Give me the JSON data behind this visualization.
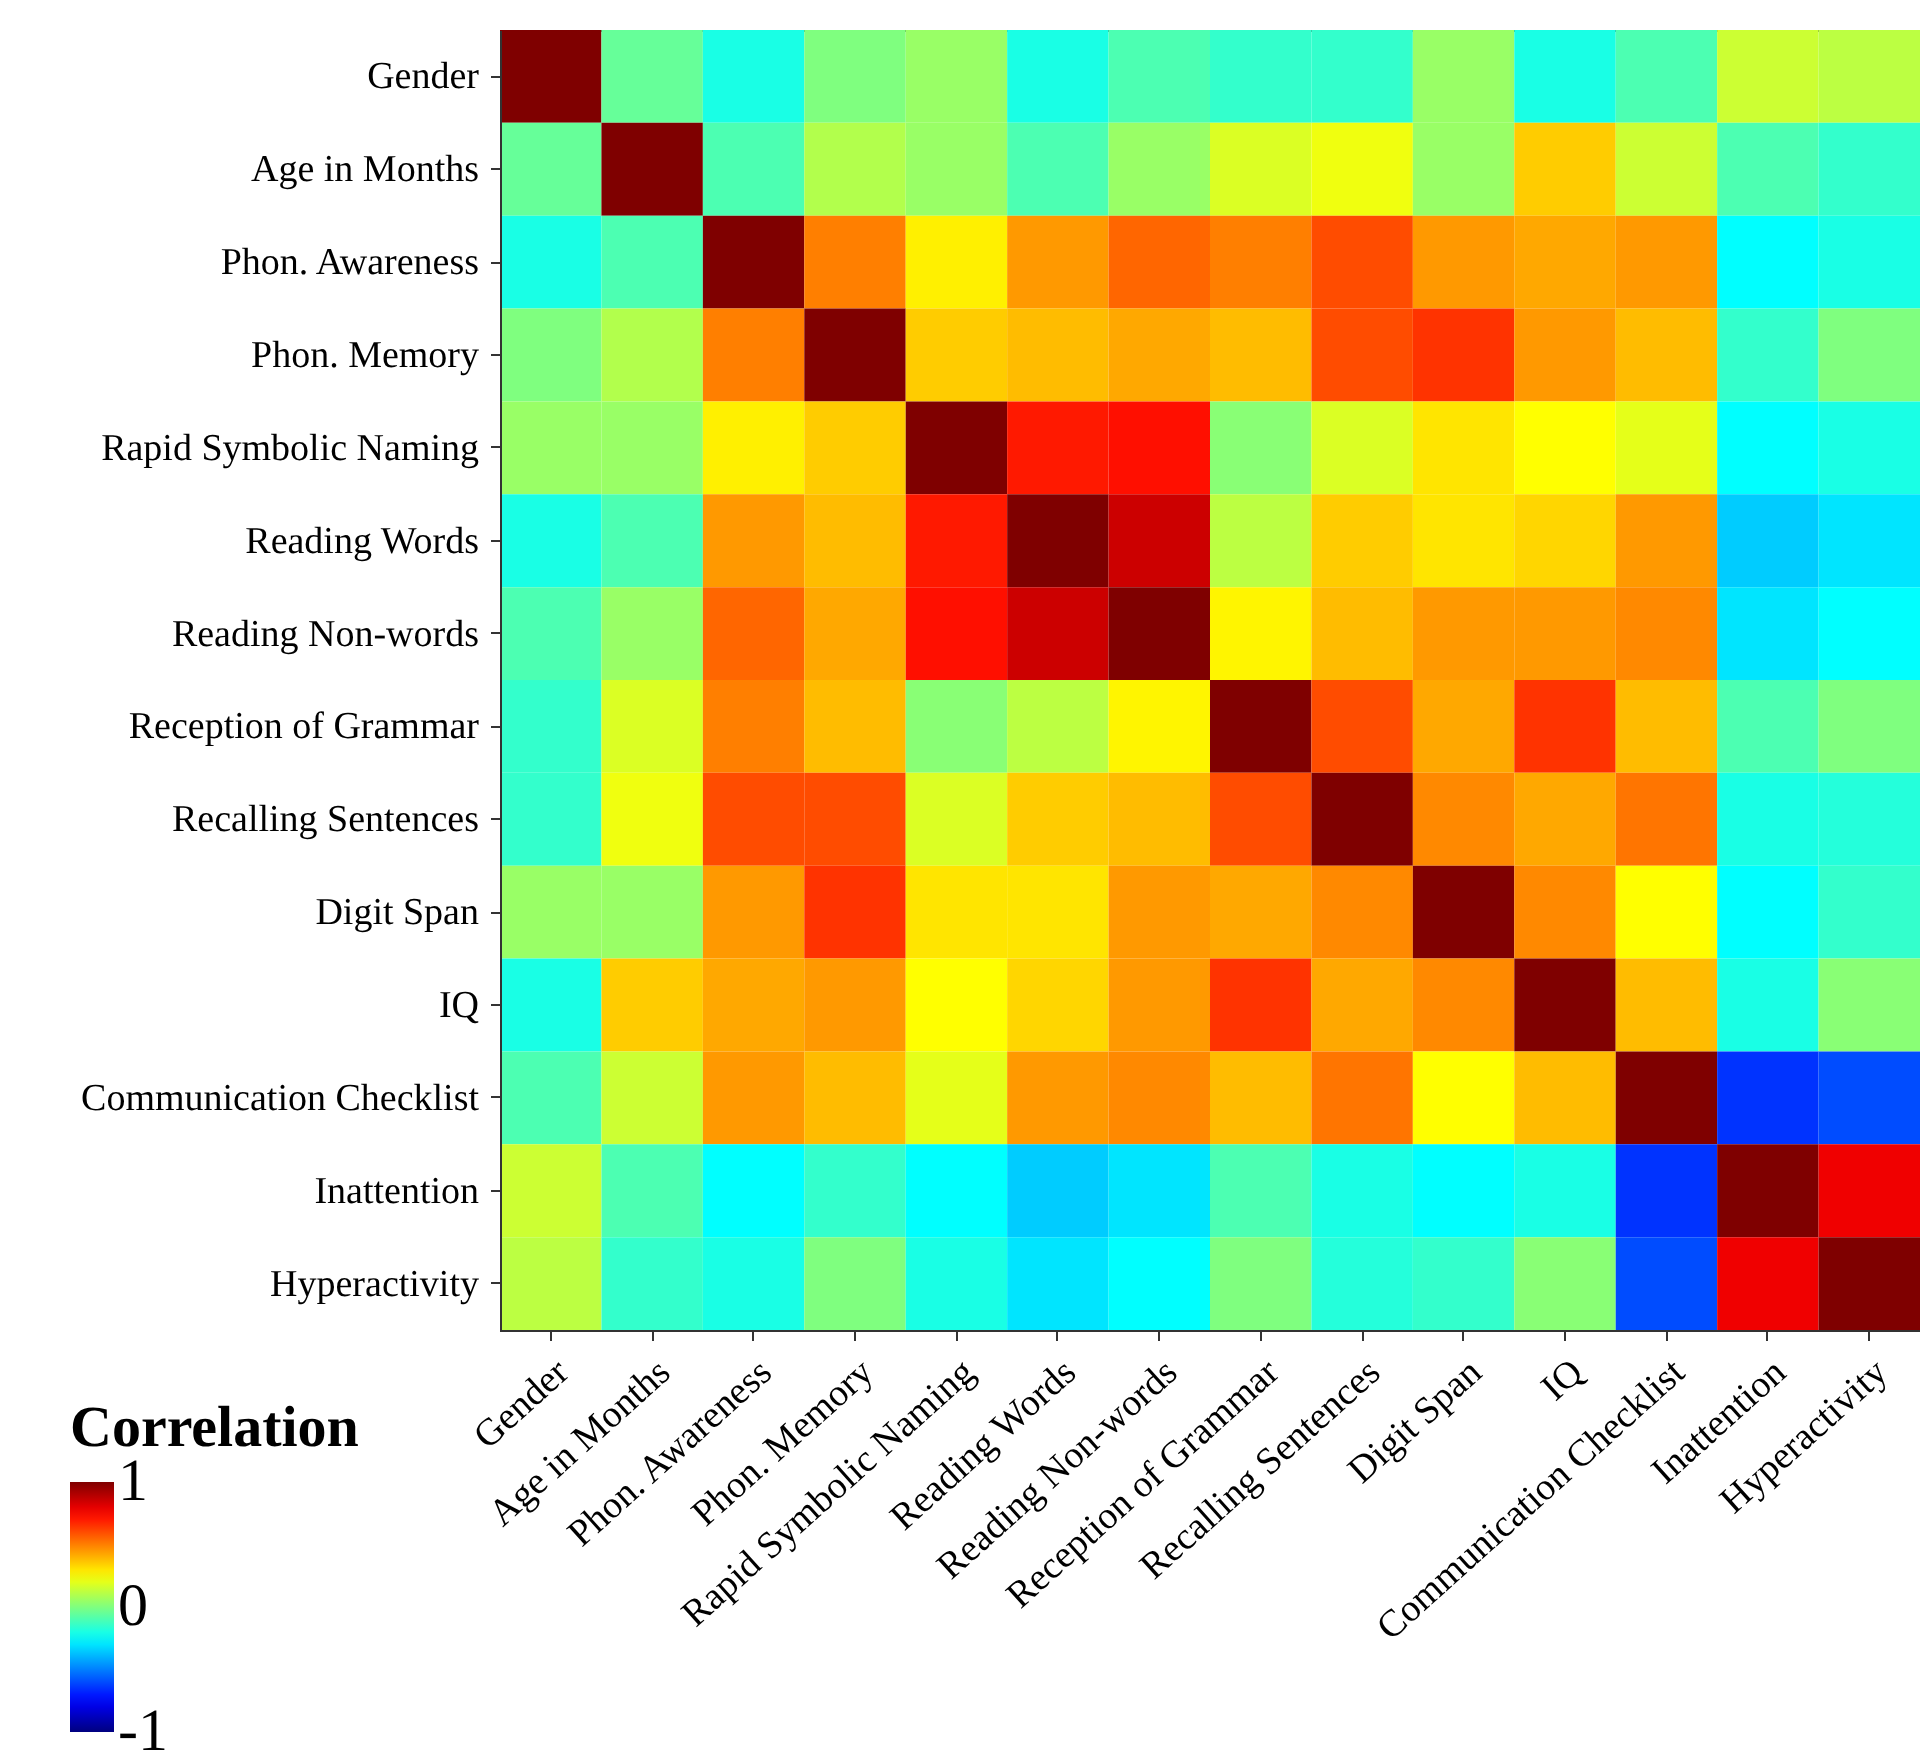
{
  "chart_data": {
    "type": "heatmap",
    "clabel": "Correlation",
    "categories": [
      "Gender",
      "Age in Months",
      "Phon. Awareness",
      "Phon. Memory",
      "Rapid Symbolic Naming",
      "Reading Words",
      "Reading Non-words",
      "Reception of Grammar",
      "Recalling Sentences",
      "Digit Span",
      "IQ",
      "Communication Checklist",
      "Inattention",
      "Hyperactivity"
    ],
    "y_categories": [
      "Gender",
      "Age in Months",
      "Phon. Awareness",
      "Phon. Memory",
      "Rapid Symbolic Naming",
      "Reading Words",
      "Reading Non-words",
      "Reception of Grammar",
      "Recalling Sentences",
      "Digit Span",
      "IQ",
      "Communication Checklist",
      "Inattention",
      "Hyperactivity"
    ],
    "cells": [
      [
        1,
        -0.05,
        -0.2,
        0,
        0.05,
        -0.2,
        -0.1,
        -0.15,
        -0.15,
        0.05,
        -0.2,
        -0.1,
        0.15,
        0.12
      ],
      [
        -0.05,
        1,
        -0.1,
        0.1,
        0.05,
        -0.1,
        0.05,
        0.18,
        0.22,
        0.05,
        0.35,
        0.15,
        -0.1,
        -0.15
      ],
      [
        -0.2,
        -0.1,
        1,
        0.5,
        0.28,
        0.45,
        0.55,
        0.5,
        0.6,
        0.45,
        0.42,
        0.45,
        -0.25,
        -0.2
      ],
      [
        0,
        0.1,
        0.5,
        1,
        0.35,
        0.38,
        0.42,
        0.38,
        0.6,
        0.65,
        0.45,
        0.38,
        -0.15,
        0
      ],
      [
        0.05,
        0.05,
        0.28,
        0.35,
        1,
        0.7,
        0.72,
        0.02,
        0.18,
        0.3,
        0.25,
        0.2,
        -0.25,
        -0.2
      ],
      [
        -0.2,
        -0.1,
        0.45,
        0.38,
        0.7,
        1,
        0.85,
        0.12,
        0.35,
        0.3,
        0.33,
        0.45,
        -0.35,
        -0.3
      ],
      [
        -0.1,
        0.05,
        0.55,
        0.42,
        0.72,
        0.85,
        1,
        0.27,
        0.38,
        0.45,
        0.45,
        0.48,
        -0.3,
        -0.25
      ],
      [
        -0.15,
        0.18,
        0.5,
        0.38,
        0.02,
        0.12,
        0.27,
        1,
        0.6,
        0.42,
        0.65,
        0.38,
        -0.1,
        0
      ],
      [
        -0.15,
        0.22,
        0.6,
        0.6,
        0.18,
        0.35,
        0.38,
        0.6,
        1,
        0.48,
        0.42,
        0.52,
        -0.2,
        -0.18
      ],
      [
        0.05,
        0.05,
        0.45,
        0.65,
        0.3,
        0.3,
        0.45,
        0.42,
        0.48,
        1,
        0.48,
        0.25,
        -0.25,
        -0.15
      ],
      [
        -0.2,
        0.35,
        0.42,
        0.45,
        0.25,
        0.33,
        0.45,
        0.65,
        0.42,
        0.48,
        1,
        0.38,
        -0.2,
        0.02
      ],
      [
        -0.1,
        0.15,
        0.45,
        0.38,
        0.2,
        0.45,
        0.48,
        0.38,
        0.52,
        0.25,
        0.38,
        1,
        -0.65,
        -0.6
      ],
      [
        0.15,
        -0.1,
        -0.25,
        -0.15,
        -0.25,
        -0.35,
        -0.3,
        -0.1,
        -0.2,
        -0.25,
        -0.2,
        -0.65,
        1,
        0.78
      ],
      [
        0.12,
        -0.15,
        -0.2,
        0,
        -0.2,
        -0.3,
        -0.25,
        0,
        -0.18,
        -0.15,
        0.02,
        -0.6,
        0.78,
        1
      ]
    ],
    "clim": [
      -1,
      1
    ],
    "cticks": [
      -1,
      0,
      1
    ]
  }
}
